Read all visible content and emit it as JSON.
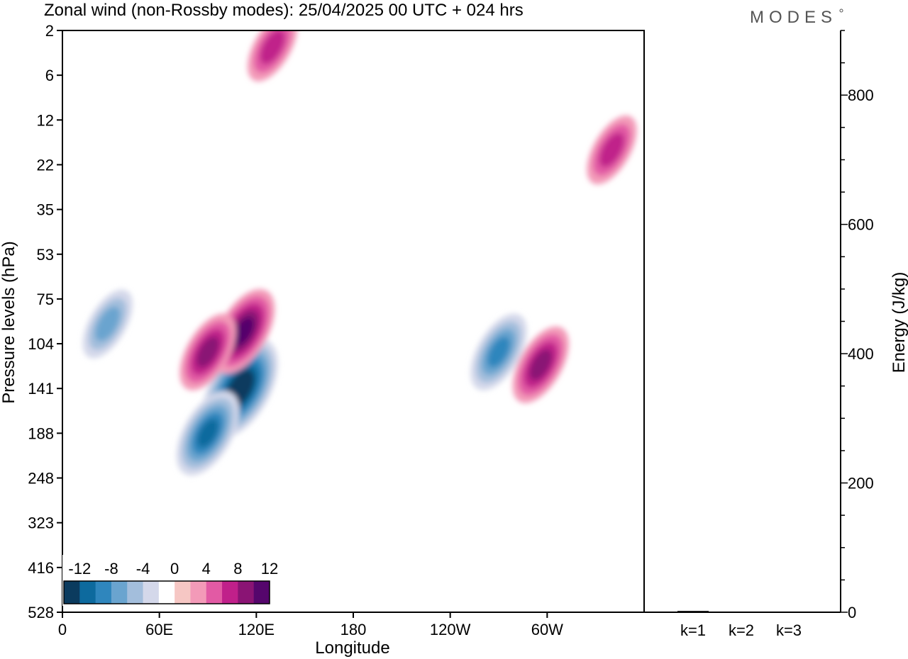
{
  "title": "Zonal wind (non-Rossby modes):  25/04/2025  00 UTC  + 024 hrs",
  "logo": "MODES",
  "chart_data": [
    {
      "type": "heatmap",
      "xlabel": "Longitude",
      "ylabel": "Pressure levels (hPa)",
      "x_ticks": [
        "0",
        "60E",
        "120E",
        "180",
        "120W",
        "60W"
      ],
      "y_ticks": [
        "2",
        "6",
        "12",
        "22",
        "35",
        "53",
        "75",
        "104",
        "141",
        "188",
        "248",
        "323",
        "416",
        "528"
      ],
      "colorbar": {
        "labels": [
          "-12",
          "-8",
          "-4",
          "0",
          "4",
          "8",
          "12"
        ],
        "colors": [
          "#0b3b5e",
          "#0d6a9e",
          "#2f86bd",
          "#6aa4cf",
          "#a3bedc",
          "#d4d8ea",
          "#ffffff",
          "#f6c7c4",
          "#f39ab8",
          "#e25aa4",
          "#c0208a",
          "#8a1474",
          "#55066c"
        ]
      },
      "features": [
        {
          "sign": "negative",
          "lon": 110,
          "lev": 141,
          "value": -14
        },
        {
          "sign": "negative",
          "lon": 90,
          "lev": 188,
          "value": -10
        },
        {
          "sign": "negative",
          "lon": 28,
          "lev": 90,
          "value": -6
        },
        {
          "sign": "negative",
          "lon": 270,
          "lev": 110,
          "value": -7
        },
        {
          "sign": "positive",
          "lon": 112,
          "lev": 95,
          "value": 9
        },
        {
          "sign": "positive",
          "lon": 90,
          "lev": 110,
          "value": 8
        },
        {
          "sign": "positive",
          "lon": 296,
          "lev": 120,
          "value": 8
        },
        {
          "sign": "positive",
          "lon": 340,
          "lev": 18,
          "value": 6
        },
        {
          "sign": "positive",
          "lon": 130,
          "lev": 3,
          "value": 6
        }
      ]
    },
    {
      "type": "bar",
      "ylabel": "Energy (J/kg)",
      "categories": [
        "k=1",
        "k=2",
        "k=3"
      ],
      "values": [
        2,
        1,
        1
      ],
      "ylim": [
        0,
        900
      ],
      "y_ticks": [
        "0",
        "200",
        "400",
        "600",
        "800"
      ]
    }
  ]
}
